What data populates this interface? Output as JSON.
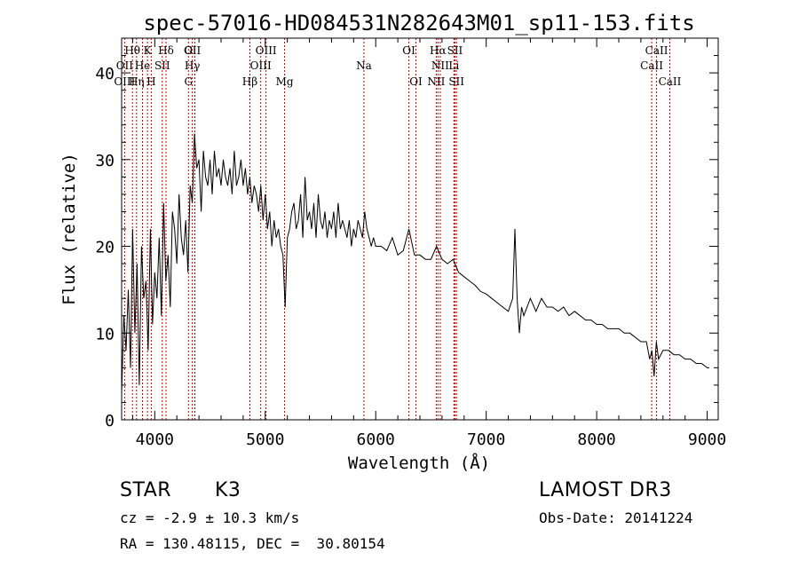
{
  "chart_data": {
    "type": "line",
    "title": "spec-57016-HD084531N282643M01_sp11-153.fits",
    "xlabel": "Wavelength (Å)",
    "ylabel": "Flux (relative)",
    "xlim": [
      3700,
      9100
    ],
    "ylim": [
      0,
      44
    ],
    "xticks": [
      4000,
      5000,
      6000,
      7000,
      8000,
      9000
    ],
    "yticks": [
      0,
      10,
      20,
      30,
      40
    ],
    "series": [
      {
        "values_x": [
          3700,
          3720,
          3740,
          3760,
          3780,
          3800,
          3820,
          3840,
          3860,
          3880,
          3900,
          3920,
          3940,
          3960,
          3980,
          4000,
          4020,
          4040,
          4060,
          4080,
          4100,
          4120,
          4140,
          4160,
          4180,
          4200,
          4220,
          4240,
          4260,
          4280,
          4300,
          4320,
          4340,
          4360,
          4380,
          4400,
          4420,
          4440,
          4460,
          4480,
          4500,
          4520,
          4540,
          4560,
          4580,
          4600,
          4620,
          4640,
          4660,
          4680,
          4700,
          4720,
          4740,
          4760,
          4780,
          4800,
          4820,
          4840,
          4860,
          4880,
          4900,
          4920,
          4940,
          4960,
          4980,
          5000,
          5020,
          5040,
          5060,
          5080,
          5100,
          5120,
          5140,
          5160,
          5180,
          5200,
          5220,
          5240,
          5260,
          5280,
          5300,
          5320,
          5340,
          5360,
          5380,
          5400,
          5420,
          5440,
          5460,
          5480,
          5500,
          5520,
          5540,
          5560,
          5580,
          5600,
          5620,
          5640,
          5660,
          5680,
          5700,
          5720,
          5740,
          5760,
          5780,
          5800,
          5820,
          5840,
          5860,
          5880,
          5900,
          5920,
          5940,
          5960,
          5980,
          6000,
          6050,
          6100,
          6150,
          6200,
          6250,
          6300,
          6350,
          6400,
          6450,
          6500,
          6550,
          6600,
          6650,
          6700,
          6750,
          6800,
          6850,
          6900,
          6950,
          7000,
          7050,
          7100,
          7150,
          7200,
          7240,
          7260,
          7280,
          7300,
          7320,
          7340,
          7400,
          7450,
          7500,
          7550,
          7600,
          7650,
          7700,
          7750,
          7800,
          7850,
          7900,
          7950,
          8000,
          8050,
          8100,
          8150,
          8200,
          8250,
          8300,
          8350,
          8400,
          8450,
          8480,
          8500,
          8520,
          8540,
          8560,
          8600,
          8650,
          8700,
          8750,
          8800,
          8850,
          8900,
          8950,
          9000,
          9020
        ],
        "values_y": [
          3,
          12,
          8,
          15,
          6,
          22,
          10,
          18,
          4,
          20,
          14,
          16,
          8,
          22,
          11,
          17,
          14,
          21,
          12,
          25,
          16,
          19,
          13,
          24,
          22,
          18,
          26,
          21,
          19,
          23,
          17,
          27,
          25,
          33,
          29,
          30,
          24,
          31,
          28,
          27,
          30,
          26,
          31,
          28,
          29,
          27,
          30,
          28,
          27,
          29,
          26,
          31,
          27,
          28,
          30,
          27,
          29,
          26,
          28,
          25,
          27,
          26,
          24,
          27,
          23,
          26,
          22,
          24,
          20,
          23,
          21,
          22,
          20,
          19,
          13,
          21,
          22,
          24,
          25,
          22,
          23,
          26,
          21,
          28,
          23,
          24,
          22,
          25,
          21,
          26,
          23,
          22,
          24,
          21,
          23,
          22,
          24,
          21,
          25,
          22,
          23,
          22,
          21,
          23,
          20,
          22,
          21,
          23,
          22,
          21,
          24,
          22,
          21,
          20,
          21,
          20,
          20,
          19.5,
          21,
          19,
          19.5,
          22,
          19,
          19,
          18.5,
          18.5,
          20,
          18.5,
          18,
          18.5,
          17,
          16.5,
          16,
          15.5,
          14.8,
          14.5,
          14,
          13.5,
          13,
          12.5,
          14,
          22,
          14,
          10,
          13,
          12,
          14,
          12.5,
          14,
          13,
          13,
          12.5,
          13,
          12,
          12.5,
          12,
          11.5,
          11.5,
          11,
          11,
          10.5,
          10.5,
          10.5,
          10,
          10,
          9.5,
          9,
          9,
          7,
          8,
          5,
          9,
          7,
          8,
          8,
          7.5,
          7.5,
          7,
          7,
          6.5,
          6.5,
          6,
          6
        ]
      }
    ],
    "line_labels": [
      {
        "text": "Hθ",
        "x": 3798,
        "row": 1
      },
      {
        "text": "K",
        "x": 3934,
        "row": 1
      },
      {
        "text": "Hδ",
        "x": 4102,
        "row": 1
      },
      {
        "text": "G",
        "x": 4305,
        "row": 1
      },
      {
        "text": "OII",
        "x": 3727,
        "row": 2
      },
      {
        "text": "He",
        "x": 3889,
        "row": 2
      },
      {
        "text": "SII",
        "x": 4068,
        "row": 2
      },
      {
        "text": "OIII",
        "x": 3727,
        "row": 3
      },
      {
        "text": "Hη",
        "x": 3835,
        "row": 3
      },
      {
        "text": "H",
        "x": 3968,
        "row": 3
      },
      {
        "text": "OII",
        "x": 4340,
        "row": 1
      },
      {
        "text": "Hγ",
        "x": 4340,
        "row": 2
      },
      {
        "text": "G",
        "x": 4305,
        "row": 3
      },
      {
        "text": "OIII",
        "x": 5007,
        "row": 1
      },
      {
        "text": "OIII",
        "x": 4959,
        "row": 2
      },
      {
        "text": "Hβ",
        "x": 4861,
        "row": 3
      },
      {
        "text": "Mg",
        "x": 5175,
        "row": 3
      },
      {
        "text": "Na",
        "x": 5893,
        "row": 2
      },
      {
        "text": "OI",
        "x": 6300,
        "row": 1
      },
      {
        "text": "OI",
        "x": 6364,
        "row": 3
      },
      {
        "text": "Hα",
        "x": 6563,
        "row": 1
      },
      {
        "text": "SII",
        "x": 6717,
        "row": 1
      },
      {
        "text": "NII",
        "x": 6584,
        "row": 2
      },
      {
        "text": "Li",
        "x": 6708,
        "row": 2
      },
      {
        "text": "NII",
        "x": 6548,
        "row": 3
      },
      {
        "text": "SII",
        "x": 6731,
        "row": 3
      },
      {
        "text": "CaII",
        "x": 8542,
        "row": 1
      },
      {
        "text": "CaII",
        "x": 8498,
        "row": 2
      },
      {
        "text": "CaII",
        "x": 8662,
        "row": 3
      }
    ],
    "line_positions": [
      3727,
      3798,
      3835,
      3889,
      3934,
      3968,
      4068,
      4102,
      4305,
      4340,
      4363,
      4861,
      4959,
      5007,
      5175,
      5893,
      6300,
      6364,
      6548,
      6563,
      6584,
      6708,
      6717,
      6731,
      8498,
      8542,
      8662
    ],
    "grid": false,
    "colors": {
      "spectrum": "#000000",
      "marker": "#cc0000"
    }
  },
  "info": {
    "class_label": "STAR",
    "subclass": "K3",
    "survey": "LAMOST DR3",
    "redshift": "cz = -2.9 ± 10.3 km/s",
    "obs_date": "Obs-Date: 20141224",
    "coords": "RA = 130.48115, DEC =  30.80154"
  }
}
